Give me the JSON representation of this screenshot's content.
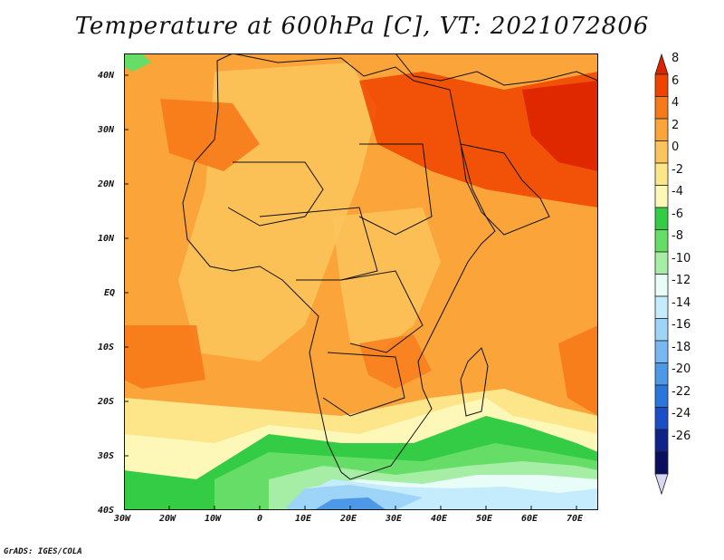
{
  "title": "Temperature at 600hPa [C], VT: 2021072806",
  "credit": "GrADS: IGES/COLA",
  "map": {
    "region": "Africa / Arabian Peninsula",
    "lon_ticks": [
      "30W",
      "20W",
      "10W",
      "0",
      "10E",
      "20E",
      "30E",
      "40E",
      "50E",
      "60E",
      "70E"
    ],
    "lat_ticks": [
      "40N",
      "30N",
      "20N",
      "10N",
      "EQ",
      "10S",
      "20S",
      "30S",
      "40S"
    ],
    "lon_range": [
      -30,
      75
    ],
    "lat_range": [
      -40,
      44
    ],
    "variable": "Temperature at 600hPa",
    "units": "C"
  },
  "colorbar": {
    "labels": [
      "8",
      "6",
      "4",
      "2",
      "0",
      "-2",
      "-4",
      "-6",
      "-8",
      "-10",
      "-12",
      "-14",
      "-16",
      "-18",
      "-20",
      "-22",
      "-24",
      "-26"
    ],
    "colors": [
      "#dd2200",
      "#ee4400",
      "#f77a1a",
      "#fba43a",
      "#fcc45a",
      "#fde58a",
      "#fdf8b8",
      "#33cc44",
      "#66dd66",
      "#a6eea6",
      "#e8fcf8",
      "#c4ecfc",
      "#9ed4f8",
      "#78b8f2",
      "#4e98e8",
      "#2a76dd",
      "#1a4ec8",
      "#0e2288",
      "#0a0e5e",
      "#d8d8f4"
    ]
  }
}
